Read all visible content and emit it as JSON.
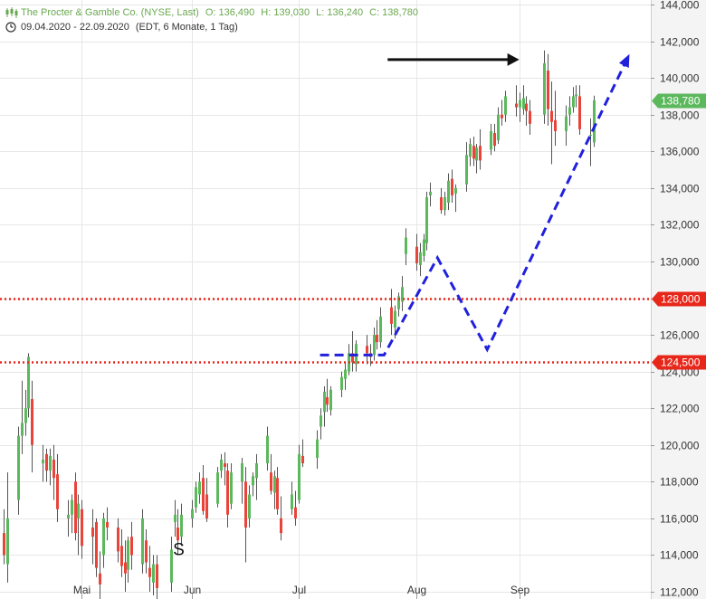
{
  "header": {
    "icon": "candlestick-icon",
    "title": "The Procter & Gamble Co. (NYSE, Last)",
    "open": "O: 136,490",
    "high": "H: 139,030",
    "low": "L: 136,240",
    "close": "C: 138,780",
    "clock_icon": "clock-icon",
    "date_range": "09.04.2020 - 22.09.2020",
    "timeframe": "(EDT, 6 Monate, 1 Tag)"
  },
  "colors": {
    "up": "#5cb85c",
    "down": "#e8443a",
    "level_line": "#e8271b",
    "current_price_badge": "#5cb85c",
    "dashed_path": "#2020dd",
    "arrow": "#111111",
    "grid": "#e6e6e6"
  },
  "chart_data": {
    "type": "candlestick",
    "y_ticks": [
      "144,000",
      "142,000",
      "140,000",
      "138,000",
      "136,000",
      "134,000",
      "132,000",
      "130,000",
      "128,000",
      "126,000",
      "124,000",
      "122,000",
      "120,000",
      "118,000",
      "116,000",
      "114,000",
      "112,000"
    ],
    "ylim": [
      112,
      144
    ],
    "x_labels": [
      {
        "label": "Mai",
        "x": "2020-05-01"
      },
      {
        "label": "Jun",
        "x": "2020-06-01"
      },
      {
        "label": "Jul",
        "x": "2020-07-01"
      },
      {
        "label": "Aug",
        "x": "2020-08-03"
      },
      {
        "label": "Sep",
        "x": "2020-09-01"
      }
    ],
    "xlim": [
      "2020-04-08",
      "2020-10-08"
    ],
    "current_price": {
      "label": "138,780",
      "value": 138.78
    },
    "horizontal_levels": [
      {
        "label": "128,000",
        "value": 128.0,
        "style": "dotted"
      },
      {
        "label": "124,500",
        "value": 124.5,
        "style": "dotted"
      }
    ],
    "annotation_text": {
      "text": "S",
      "x": "2020-05-28",
      "y": 114.0
    },
    "annotation_arrow": {
      "from": {
        "x": "2020-07-26",
        "y": 141.0
      },
      "to": {
        "x": "2020-09-01",
        "y": 141.0
      }
    },
    "projection_path": [
      {
        "x": "2020-07-07",
        "y": 124.9
      },
      {
        "x": "2020-07-25",
        "y": 124.9
      },
      {
        "x": "2020-08-09",
        "y": 130.2
      },
      {
        "x": "2020-08-23",
        "y": 125.2
      },
      {
        "x": "2020-10-02",
        "y": 141.3
      }
    ],
    "candles": [
      {
        "x": "2020-04-09",
        "o": 115.2,
        "h": 116.5,
        "l": 113.5,
        "c": 114.0
      },
      {
        "x": "2020-04-10",
        "o": 113.5,
        "h": 118.5,
        "l": 112.5,
        "c": 116.0
      },
      {
        "x": "2020-04-13",
        "o": 117.0,
        "h": 121.0,
        "l": 116.2,
        "c": 120.5
      },
      {
        "x": "2020-04-14",
        "o": 120.5,
        "h": 123.5,
        "l": 119.5,
        "c": 121.2
      },
      {
        "x": "2020-04-15",
        "o": 121.2,
        "h": 123.0,
        "l": 120.5,
        "c": 122.0
      },
      {
        "x": "2020-04-16",
        "o": 122.0,
        "h": 125.0,
        "l": 121.5,
        "c": 124.8
      },
      {
        "x": "2020-04-17",
        "o": 122.5,
        "h": 123.5,
        "l": 118.5,
        "c": 120.0
      },
      {
        "x": "2020-04-20",
        "o": 119.0,
        "h": 120.0,
        "l": 118.0,
        "c": 119.2
      },
      {
        "x": "2020-04-21",
        "o": 119.5,
        "h": 119.8,
        "l": 118.0,
        "c": 118.6
      },
      {
        "x": "2020-04-22",
        "o": 118.6,
        "h": 119.8,
        "l": 117.8,
        "c": 119.4
      },
      {
        "x": "2020-04-23",
        "o": 119.2,
        "h": 120.0,
        "l": 117.0,
        "c": 118.2
      },
      {
        "x": "2020-04-24",
        "o": 118.4,
        "h": 119.5,
        "l": 115.8,
        "c": 116.5
      },
      {
        "x": "2020-04-27",
        "o": 116.0,
        "h": 117.0,
        "l": 115.0,
        "c": 116.2
      },
      {
        "x": "2020-04-28",
        "o": 116.2,
        "h": 117.3,
        "l": 115.2,
        "c": 117.0
      },
      {
        "x": "2020-04-29",
        "o": 118.0,
        "h": 118.5,
        "l": 114.8,
        "c": 115.2
      },
      {
        "x": "2020-04-30",
        "o": 116.0,
        "h": 117.3,
        "l": 114.0,
        "c": 116.8
      },
      {
        "x": "2020-05-01",
        "o": 116.5,
        "h": 117.0,
        "l": 113.8,
        "c": 114.5
      },
      {
        "x": "2020-05-04",
        "o": 115.5,
        "h": 116.5,
        "l": 113.5,
        "c": 115.0
      },
      {
        "x": "2020-05-05",
        "o": 115.8,
        "h": 116.0,
        "l": 112.8,
        "c": 113.3
      },
      {
        "x": "2020-05-06",
        "o": 113.0,
        "h": 114.2,
        "l": 111.6,
        "c": 112.4
      },
      {
        "x": "2020-05-07",
        "o": 114.0,
        "h": 116.3,
        "l": 113.3,
        "c": 116.0
      },
      {
        "x": "2020-05-08",
        "o": 115.8,
        "h": 116.6,
        "l": 114.8,
        "c": 115.5
      },
      {
        "x": "2020-05-11",
        "o": 115.5,
        "h": 116.0,
        "l": 113.6,
        "c": 114.2
      },
      {
        "x": "2020-05-12",
        "o": 114.5,
        "h": 115.4,
        "l": 112.8,
        "c": 113.4
      },
      {
        "x": "2020-05-13",
        "o": 113.6,
        "h": 114.8,
        "l": 112.0,
        "c": 113.0
      },
      {
        "x": "2020-05-14",
        "o": 113.2,
        "h": 115.0,
        "l": 112.5,
        "c": 114.8
      },
      {
        "x": "2020-05-15",
        "o": 115.0,
        "h": 115.8,
        "l": 113.2,
        "c": 114.0
      },
      {
        "x": "2020-05-18",
        "o": 113.5,
        "h": 116.5,
        "l": 113.0,
        "c": 116.0
      },
      {
        "x": "2020-05-19",
        "o": 114.8,
        "h": 115.4,
        "l": 113.0,
        "c": 113.6
      },
      {
        "x": "2020-05-20",
        "o": 113.3,
        "h": 114.5,
        "l": 112.0,
        "c": 112.8
      },
      {
        "x": "2020-05-21",
        "o": 112.5,
        "h": 114.0,
        "l": 111.8,
        "c": 113.5
      },
      {
        "x": "2020-05-22",
        "o": 113.5,
        "h": 114.0,
        "l": 111.6,
        "c": 112.2
      },
      {
        "x": "2020-05-26",
        "o": 112.5,
        "h": 115.0,
        "l": 112.0,
        "c": 114.3
      },
      {
        "x": "2020-05-27",
        "o": 115.8,
        "h": 117.0,
        "l": 115.0,
        "c": 116.2
      },
      {
        "x": "2020-05-28",
        "o": 115.5,
        "h": 116.5,
        "l": 114.0,
        "c": 114.8
      },
      {
        "x": "2020-05-29",
        "o": 115.0,
        "h": 116.8,
        "l": 114.5,
        "c": 116.2
      },
      {
        "x": "2020-06-01",
        "o": 116.0,
        "h": 117.0,
        "l": 115.5,
        "c": 116.5
      },
      {
        "x": "2020-06-02",
        "o": 116.6,
        "h": 118.0,
        "l": 116.3,
        "c": 117.7
      },
      {
        "x": "2020-06-03",
        "o": 117.3,
        "h": 118.5,
        "l": 116.8,
        "c": 118.0
      },
      {
        "x": "2020-06-04",
        "o": 118.2,
        "h": 118.9,
        "l": 116.2,
        "c": 116.4
      },
      {
        "x": "2020-06-05",
        "o": 117.3,
        "h": 118.2,
        "l": 115.8,
        "c": 116.0
      },
      {
        "x": "2020-06-08",
        "o": 116.8,
        "h": 118.8,
        "l": 116.6,
        "c": 118.5
      },
      {
        "x": "2020-06-09",
        "o": 118.6,
        "h": 119.5,
        "l": 118.2,
        "c": 119.2
      },
      {
        "x": "2020-06-10",
        "o": 119.0,
        "h": 119.6,
        "l": 117.8,
        "c": 118.8
      },
      {
        "x": "2020-06-11",
        "o": 118.6,
        "h": 119.0,
        "l": 115.5,
        "c": 116.2
      },
      {
        "x": "2020-06-12",
        "o": 116.8,
        "h": 119.0,
        "l": 116.5,
        "c": 118.5
      },
      {
        "x": "2020-06-15",
        "o": 118.0,
        "h": 119.3,
        "l": 116.8,
        "c": 119.0
      },
      {
        "x": "2020-06-16",
        "o": 118.0,
        "h": 118.8,
        "l": 113.6,
        "c": 115.5
      },
      {
        "x": "2020-06-17",
        "o": 116.0,
        "h": 117.8,
        "l": 115.5,
        "c": 117.3
      },
      {
        "x": "2020-06-18",
        "o": 117.8,
        "h": 118.5,
        "l": 117.2,
        "c": 118.3
      },
      {
        "x": "2020-06-19",
        "o": 118.2,
        "h": 119.5,
        "l": 117.0,
        "c": 119.0
      },
      {
        "x": "2020-06-22",
        "o": 119.0,
        "h": 121.0,
        "l": 118.6,
        "c": 120.5
      },
      {
        "x": "2020-06-23",
        "o": 118.5,
        "h": 119.5,
        "l": 117.3,
        "c": 117.5
      },
      {
        "x": "2020-06-24",
        "o": 117.4,
        "h": 118.6,
        "l": 116.5,
        "c": 118.3
      },
      {
        "x": "2020-06-25",
        "o": 118.2,
        "h": 118.8,
        "l": 116.2,
        "c": 116.5
      },
      {
        "x": "2020-06-26",
        "o": 116.0,
        "h": 117.2,
        "l": 114.8,
        "c": 115.2
      },
      {
        "x": "2020-06-29",
        "o": 116.5,
        "h": 118.0,
        "l": 116.2,
        "c": 117.3
      },
      {
        "x": "2020-06-30",
        "o": 116.6,
        "h": 117.5,
        "l": 115.6,
        "c": 116.0
      },
      {
        "x": "2020-07-01",
        "o": 117.0,
        "h": 120.0,
        "l": 116.8,
        "c": 119.5
      },
      {
        "x": "2020-07-02",
        "o": 119.4,
        "h": 120.3,
        "l": 118.8,
        "c": 119.0
      },
      {
        "x": "2020-07-06",
        "o": 119.3,
        "h": 120.8,
        "l": 118.7,
        "c": 120.3
      },
      {
        "x": "2020-07-07",
        "o": 121.0,
        "h": 122.0,
        "l": 120.3,
        "c": 121.6
      },
      {
        "x": "2020-07-08",
        "o": 121.8,
        "h": 123.2,
        "l": 121.0,
        "c": 122.9
      },
      {
        "x": "2020-07-09",
        "o": 122.6,
        "h": 123.6,
        "l": 121.8,
        "c": 122.2
      },
      {
        "x": "2020-07-10",
        "o": 121.9,
        "h": 123.2,
        "l": 121.6,
        "c": 123.0
      },
      {
        "x": "2020-07-13",
        "o": 123.0,
        "h": 124.0,
        "l": 122.6,
        "c": 123.7
      },
      {
        "x": "2020-07-14",
        "o": 123.6,
        "h": 124.5,
        "l": 123.0,
        "c": 124.1
      },
      {
        "x": "2020-07-15",
        "o": 124.0,
        "h": 125.5,
        "l": 123.8,
        "c": 125.0
      },
      {
        "x": "2020-07-16",
        "o": 125.0,
        "h": 126.2,
        "l": 124.0,
        "c": 124.5
      },
      {
        "x": "2020-07-17",
        "o": 124.4,
        "h": 125.7,
        "l": 124.0,
        "c": 125.5
      },
      {
        "x": "2020-07-20",
        "o": 125.4,
        "h": 126.0,
        "l": 124.4,
        "c": 125.0
      },
      {
        "x": "2020-07-21",
        "o": 125.0,
        "h": 125.5,
        "l": 124.3,
        "c": 124.8
      },
      {
        "x": "2020-07-22",
        "o": 124.9,
        "h": 126.4,
        "l": 124.6,
        "c": 126.0
      },
      {
        "x": "2020-07-23",
        "o": 126.0,
        "h": 126.8,
        "l": 125.2,
        "c": 125.6
      },
      {
        "x": "2020-07-24",
        "o": 125.6,
        "h": 127.5,
        "l": 125.3,
        "c": 127.0
      },
      {
        "x": "2020-07-27",
        "o": 127.5,
        "h": 128.5,
        "l": 126.0,
        "c": 126.6
      },
      {
        "x": "2020-07-28",
        "o": 126.4,
        "h": 127.6,
        "l": 125.8,
        "c": 127.3
      },
      {
        "x": "2020-07-29",
        "o": 127.4,
        "h": 128.3,
        "l": 127.0,
        "c": 128.1
      },
      {
        "x": "2020-07-30",
        "o": 127.8,
        "h": 129.2,
        "l": 127.3,
        "c": 128.6
      },
      {
        "x": "2020-07-31",
        "o": 130.4,
        "h": 131.8,
        "l": 129.8,
        "c": 131.3
      },
      {
        "x": "2020-08-03",
        "o": 130.8,
        "h": 131.5,
        "l": 129.5,
        "c": 129.9
      },
      {
        "x": "2020-08-04",
        "o": 129.8,
        "h": 131.0,
        "l": 129.2,
        "c": 130.5
      },
      {
        "x": "2020-08-05",
        "o": 130.3,
        "h": 131.5,
        "l": 130.0,
        "c": 131.2
      },
      {
        "x": "2020-08-06",
        "o": 131.0,
        "h": 133.8,
        "l": 130.6,
        "c": 133.5
      },
      {
        "x": "2020-08-07",
        "o": 133.6,
        "h": 134.3,
        "l": 133.0,
        "c": 133.8
      },
      {
        "x": "2020-08-10",
        "o": 133.5,
        "h": 134.0,
        "l": 132.6,
        "c": 132.8
      },
      {
        "x": "2020-08-11",
        "o": 132.8,
        "h": 133.8,
        "l": 132.5,
        "c": 133.5
      },
      {
        "x": "2020-08-12",
        "o": 133.2,
        "h": 134.8,
        "l": 132.8,
        "c": 134.4
      },
      {
        "x": "2020-08-13",
        "o": 134.5,
        "h": 135.0,
        "l": 133.2,
        "c": 133.6
      },
      {
        "x": "2020-08-14",
        "o": 133.7,
        "h": 134.2,
        "l": 132.7,
        "c": 134.0
      },
      {
        "x": "2020-08-17",
        "o": 134.2,
        "h": 136.5,
        "l": 133.8,
        "c": 135.8
      },
      {
        "x": "2020-08-18",
        "o": 135.7,
        "h": 136.7,
        "l": 135.2,
        "c": 136.4
      },
      {
        "x": "2020-08-19",
        "o": 136.3,
        "h": 136.8,
        "l": 135.2,
        "c": 135.6
      },
      {
        "x": "2020-08-20",
        "o": 135.5,
        "h": 136.4,
        "l": 134.8,
        "c": 136.2
      },
      {
        "x": "2020-08-21",
        "o": 136.3,
        "h": 137.2,
        "l": 135.0,
        "c": 135.5
      },
      {
        "x": "2020-08-24",
        "o": 136.1,
        "h": 137.5,
        "l": 135.8,
        "c": 137.1
      },
      {
        "x": "2020-08-25",
        "o": 137.0,
        "h": 137.5,
        "l": 136.0,
        "c": 136.3
      },
      {
        "x": "2020-08-26",
        "o": 136.6,
        "h": 138.4,
        "l": 136.4,
        "c": 138.0
      },
      {
        "x": "2020-08-27",
        "o": 138.0,
        "h": 138.8,
        "l": 137.4,
        "c": 137.8
      },
      {
        "x": "2020-08-28",
        "o": 138.0,
        "h": 139.3,
        "l": 137.6,
        "c": 139.0
      },
      {
        "x": "2020-08-31",
        "o": 138.6,
        "h": 139.6,
        "l": 137.9,
        "c": 138.4
      },
      {
        "x": "2020-09-01",
        "o": 138.4,
        "h": 139.2,
        "l": 137.6,
        "c": 138.8
      },
      {
        "x": "2020-09-02",
        "o": 138.3,
        "h": 139.6,
        "l": 138.0,
        "c": 138.9
      },
      {
        "x": "2020-09-03",
        "o": 138.6,
        "h": 139.0,
        "l": 137.4,
        "c": 138.2
      },
      {
        "x": "2020-09-04",
        "o": 138.2,
        "h": 138.8,
        "l": 136.9,
        "c": 137.5
      },
      {
        "x": "2020-09-08",
        "o": 138.0,
        "h": 141.5,
        "l": 137.5,
        "c": 140.8
      },
      {
        "x": "2020-09-09",
        "o": 140.4,
        "h": 141.3,
        "l": 137.4,
        "c": 138.3
      },
      {
        "x": "2020-09-10",
        "o": 138.2,
        "h": 139.8,
        "l": 135.3,
        "c": 137.6
      },
      {
        "x": "2020-09-11",
        "o": 137.7,
        "h": 139.3,
        "l": 136.3,
        "c": 137.1
      },
      {
        "x": "2020-09-14",
        "o": 137.1,
        "h": 138.5,
        "l": 136.3,
        "c": 137.9
      },
      {
        "x": "2020-09-15",
        "o": 138.0,
        "h": 139.0,
        "l": 137.4,
        "c": 138.4
      },
      {
        "x": "2020-09-16",
        "o": 138.4,
        "h": 139.5,
        "l": 138.1,
        "c": 139.0
      },
      {
        "x": "2020-09-17",
        "o": 139.0,
        "h": 139.6,
        "l": 138.4,
        "c": 139.1
      },
      {
        "x": "2020-09-18",
        "o": 139.0,
        "h": 139.6,
        "l": 136.9,
        "c": 137.2
      },
      {
        "x": "2020-09-21",
        "o": 136.9,
        "h": 137.8,
        "l": 135.2,
        "c": 136.9
      },
      {
        "x": "2020-09-22",
        "o": 136.49,
        "h": 139.03,
        "l": 136.24,
        "c": 138.78
      }
    ]
  }
}
